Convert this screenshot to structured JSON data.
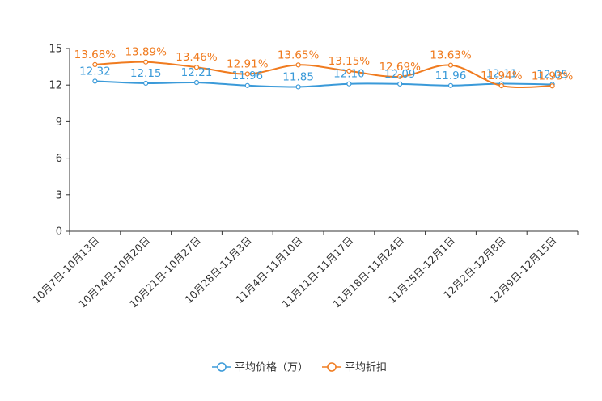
{
  "chart_data": {
    "type": "line",
    "categories": [
      "10月7日-10月13日",
      "10月14日-10月20日",
      "10月21日-10月27日",
      "10月28日-11月3日",
      "11月4日-11月10日",
      "11月11日-11月17日",
      "11月18日-11月24日",
      "11月25日-12月1日",
      "12月2日-12月8日",
      "12月9日-12月15日"
    ],
    "series": [
      {
        "name": "平均价格（万）",
        "color": "#3a9ad9",
        "values": [
          12.32,
          12.15,
          12.21,
          11.96,
          11.85,
          12.1,
          12.09,
          11.96,
          12.11,
          12.05
        ],
        "labels": [
          "12.32",
          "12.15",
          "12.21",
          "11.96",
          "11.85",
          "12.10",
          "12.09",
          "11.96",
          "12.11",
          "12.05"
        ]
      },
      {
        "name": "平均折扣",
        "color": "#f07b1f",
        "values": [
          13.68,
          13.89,
          13.46,
          12.91,
          13.65,
          13.15,
          12.69,
          13.63,
          11.94,
          11.93
        ],
        "labels": [
          "13.68%",
          "13.89%",
          "13.46%",
          "12.91%",
          "13.65%",
          "13.15%",
          "12.69%",
          "13.63%",
          "11.94%",
          "11.93%"
        ]
      }
    ],
    "ylim": [
      0,
      15
    ],
    "yticks": [
      0,
      3,
      6,
      9,
      12,
      15
    ],
    "ytick_labels": [
      "0",
      "3",
      "6",
      "9",
      "12",
      "15"
    ],
    "legend_position": "bottom-center"
  }
}
